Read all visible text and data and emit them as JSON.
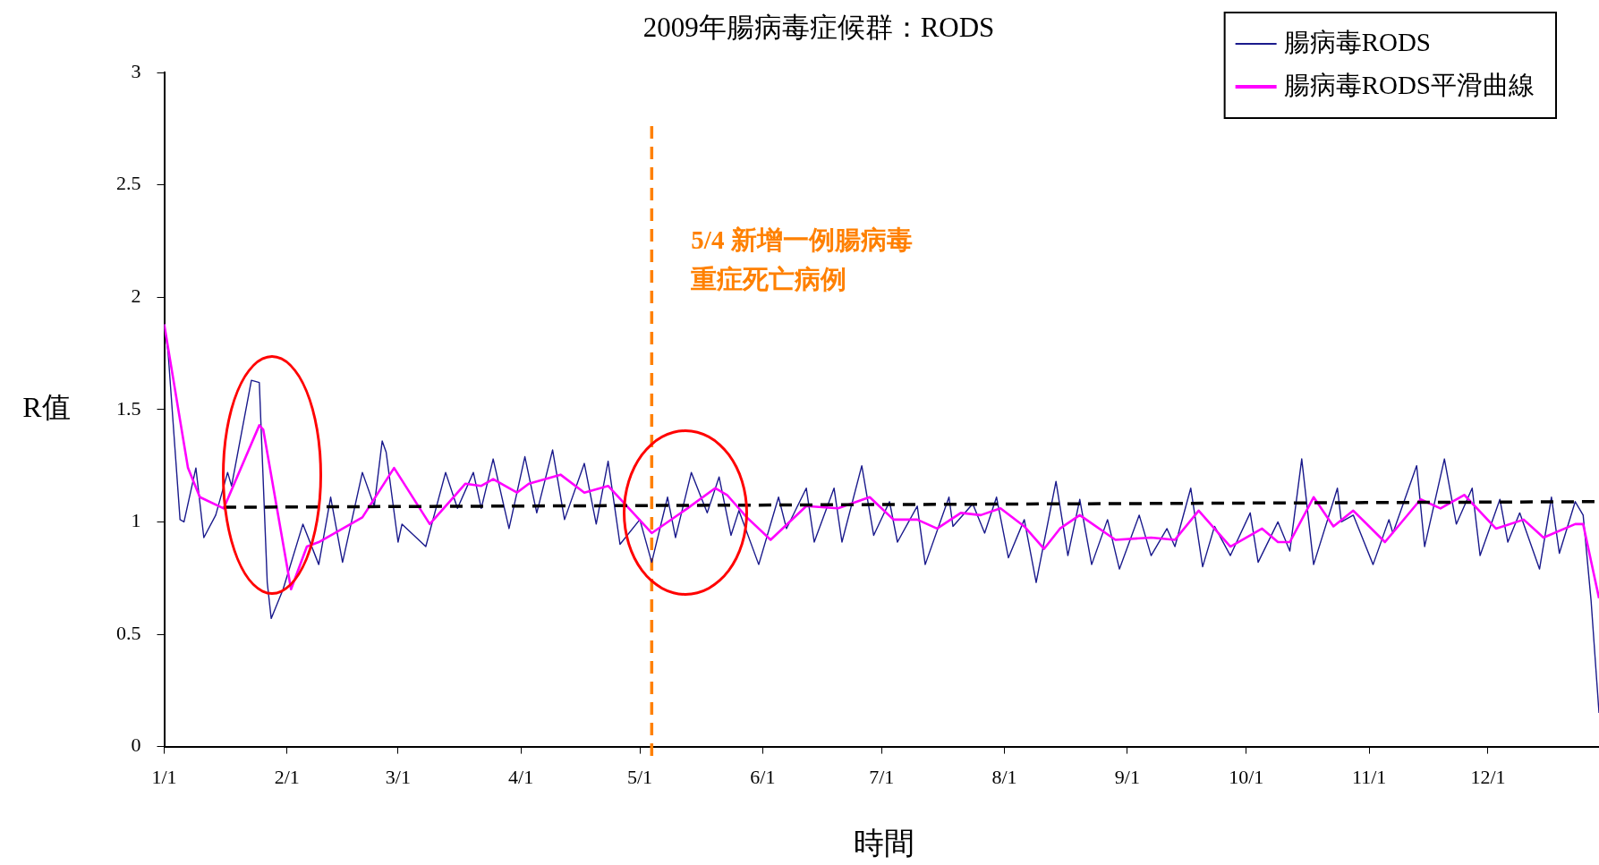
{
  "chart_data": {
    "type": "line",
    "title": "2009年腸病毒症候群：RODS",
    "xlabel": "時間",
    "ylabel": "R值",
    "legend": "top right",
    "grid": false,
    "marker": "none",
    "xlim": [
      "2009-01-01",
      "2009-12-29"
    ],
    "xticks": [
      {
        "value": "2009-01-01",
        "label": "1/1"
      },
      {
        "value": "2009-02-01",
        "label": "2/1"
      },
      {
        "value": "2009-03-01",
        "label": "3/1"
      },
      {
        "value": "2009-04-01",
        "label": "4/1"
      },
      {
        "value": "2009-05-01",
        "label": "5/1"
      },
      {
        "value": "2009-06-01",
        "label": "6/1"
      },
      {
        "value": "2009-07-01",
        "label": "7/1"
      },
      {
        "value": "2009-08-01",
        "label": "8/1"
      },
      {
        "value": "2009-09-01",
        "label": "9/1"
      },
      {
        "value": "2009-10-01",
        "label": "10/1"
      },
      {
        "value": "2009-11-01",
        "label": "11/1"
      },
      {
        "value": "2009-12-01",
        "label": "12/1"
      }
    ],
    "ylim": [
      0,
      3
    ],
    "yticks": [
      0,
      0.5,
      1,
      1.5,
      2,
      2.5,
      3
    ],
    "series": [
      {
        "name": "腸病毒RODS",
        "color": "#1a1a8c",
        "line_style": "solid",
        "x": [
          "2009-01-01",
          "2009-01-02",
          "2009-01-05",
          "2009-01-06",
          "2009-01-09",
          "2009-01-11",
          "2009-01-14",
          "2009-01-17",
          "2009-01-18",
          "2009-01-23",
          "2009-01-25",
          "2009-01-27",
          "2009-01-28",
          "2009-01-31",
          "2009-02-05",
          "2009-02-09",
          "2009-02-12",
          "2009-02-15",
          "2009-02-20",
          "2009-02-23",
          "2009-02-25",
          "2009-02-26",
          "2009-03-01",
          "2009-03-02",
          "2009-03-08",
          "2009-03-13",
          "2009-03-16",
          "2009-03-20",
          "2009-03-22",
          "2009-03-25",
          "2009-03-29",
          "2009-04-02",
          "2009-04-05",
          "2009-04-09",
          "2009-04-12",
          "2009-04-17",
          "2009-04-20",
          "2009-04-23",
          "2009-04-26",
          "2009-05-01",
          "2009-05-04",
          "2009-05-08",
          "2009-05-10",
          "2009-05-14",
          "2009-05-18",
          "2009-05-21",
          "2009-05-24",
          "2009-05-26",
          "2009-05-31",
          "2009-06-05",
          "2009-06-07",
          "2009-06-12",
          "2009-06-14",
          "2009-06-19",
          "2009-06-21",
          "2009-06-26",
          "2009-06-29",
          "2009-07-03",
          "2009-07-05",
          "2009-07-10",
          "2009-07-12",
          "2009-07-18",
          "2009-07-19",
          "2009-07-24",
          "2009-07-27",
          "2009-07-30",
          "2009-08-02",
          "2009-08-06",
          "2009-08-09",
          "2009-08-14",
          "2009-08-17",
          "2009-08-20",
          "2009-08-23",
          "2009-08-27",
          "2009-08-30",
          "2009-09-04",
          "2009-09-07",
          "2009-09-11",
          "2009-09-13",
          "2009-09-17",
          "2009-09-20",
          "2009-09-23",
          "2009-09-27",
          "2009-10-02",
          "2009-10-04",
          "2009-10-09",
          "2009-10-12",
          "2009-10-15",
          "2009-10-18",
          "2009-10-24",
          "2009-10-25",
          "2009-10-28",
          "2009-11-02",
          "2009-11-06",
          "2009-11-07",
          "2009-11-13",
          "2009-11-15",
          "2009-11-20",
          "2009-11-23",
          "2009-11-27",
          "2009-11-29",
          "2009-12-04",
          "2009-12-06",
          "2009-12-09",
          "2009-12-14",
          "2009-12-17",
          "2009-12-19",
          "2009-12-23",
          "2009-12-25",
          "2009-12-27",
          "2009-12-29"
        ],
        "values": [
          1.88,
          1.75,
          1.01,
          1.0,
          1.24,
          0.93,
          1.03,
          1.22,
          1.16,
          1.63,
          1.62,
          0.73,
          0.57,
          0.7,
          0.99,
          0.81,
          1.11,
          0.82,
          1.22,
          1.07,
          1.36,
          1.31,
          0.91,
          0.99,
          0.89,
          1.22,
          1.06,
          1.22,
          1.06,
          1.28,
          0.97,
          1.29,
          1.04,
          1.32,
          1.01,
          1.26,
          0.99,
          1.27,
          0.9,
          1.01,
          0.82,
          1.11,
          0.93,
          1.22,
          1.04,
          1.2,
          0.94,
          1.05,
          0.81,
          1.11,
          0.97,
          1.15,
          0.91,
          1.15,
          0.91,
          1.25,
          0.94,
          1.09,
          0.91,
          1.07,
          0.81,
          1.11,
          0.98,
          1.08,
          0.95,
          1.11,
          0.84,
          1.01,
          0.73,
          1.18,
          0.85,
          1.1,
          0.81,
          1.01,
          0.79,
          1.03,
          0.85,
          0.97,
          0.89,
          1.15,
          0.8,
          0.98,
          0.85,
          1.04,
          0.82,
          1.0,
          0.87,
          1.28,
          0.81,
          1.15,
          1.0,
          1.03,
          0.81,
          1.01,
          0.95,
          1.25,
          0.89,
          1.28,
          0.99,
          1.15,
          0.85,
          1.1,
          0.91,
          1.04,
          0.79,
          1.11,
          0.86,
          1.09,
          1.03,
          0.65,
          0.15
        ]
      },
      {
        "name": "腸病毒RODS平滑曲線",
        "color": "#ff00ff",
        "line_style": "solid",
        "x": [
          "2009-01-01",
          "2009-01-07",
          "2009-01-10",
          "2009-01-16",
          "2009-01-25",
          "2009-01-26",
          "2009-02-02",
          "2009-02-06",
          "2009-02-09",
          "2009-02-20",
          "2009-02-28",
          "2009-03-09",
          "2009-03-18",
          "2009-03-22",
          "2009-03-25",
          "2009-03-31",
          "2009-04-03",
          "2009-04-11",
          "2009-04-17",
          "2009-04-23",
          "2009-05-04",
          "2009-05-13",
          "2009-05-20",
          "2009-05-23",
          "2009-05-28",
          "2009-06-03",
          "2009-06-12",
          "2009-06-20",
          "2009-06-28",
          "2009-07-04",
          "2009-07-10",
          "2009-07-15",
          "2009-07-21",
          "2009-07-26",
          "2009-07-31",
          "2009-08-06",
          "2009-08-11",
          "2009-08-15",
          "2009-08-20",
          "2009-08-29",
          "2009-09-07",
          "2009-09-13",
          "2009-09-19",
          "2009-09-27",
          "2009-10-05",
          "2009-10-09",
          "2009-10-12",
          "2009-10-18",
          "2009-10-23",
          "2009-10-28",
          "2009-11-05",
          "2009-11-14",
          "2009-11-19",
          "2009-11-25",
          "2009-12-03",
          "2009-12-10",
          "2009-12-15",
          "2009-12-23",
          "2009-12-25",
          "2009-12-29"
        ],
        "values": [
          1.88,
          1.24,
          1.11,
          1.06,
          1.43,
          1.41,
          0.7,
          0.89,
          0.91,
          1.02,
          1.24,
          0.99,
          1.17,
          1.16,
          1.19,
          1.13,
          1.17,
          1.21,
          1.13,
          1.16,
          0.95,
          1.06,
          1.15,
          1.12,
          1.02,
          0.92,
          1.07,
          1.06,
          1.11,
          1.01,
          1.01,
          0.97,
          1.04,
          1.03,
          1.06,
          0.98,
          0.88,
          0.97,
          1.03,
          0.92,
          0.93,
          0.92,
          1.05,
          0.89,
          0.97,
          0.91,
          0.91,
          1.11,
          0.98,
          1.05,
          0.91,
          1.1,
          1.06,
          1.12,
          0.97,
          1.01,
          0.93,
          0.99,
          0.99,
          0.66
        ]
      },
      {
        "type": "line",
        "color": "#000000",
        "line_style": "dashed",
        "x": [
          "2009-01-16",
          "2009-12-29"
        ],
        "values": [
          1.065,
          1.09
        ]
      }
    ],
    "ref_lines": [
      {
        "axis": "x",
        "value": "2009-05-04",
        "color": "#ff8000",
        "line_style": "dashed"
      }
    ],
    "annotations": [
      "5/4 新增一例腸病毒",
      "重症死亡病例"
    ]
  }
}
